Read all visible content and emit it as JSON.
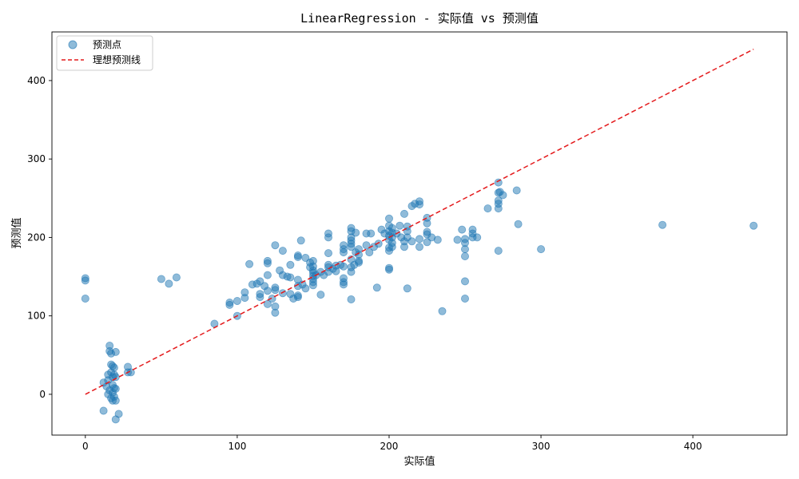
{
  "chart_data": {
    "type": "scatter",
    "title": "LinearRegression - 实际值 vs 预测值",
    "xlabel": "实际值",
    "ylabel": "预测值",
    "xlim": [
      -22,
      462
    ],
    "ylim": [
      -52,
      462
    ],
    "xticks": [
      0,
      100,
      200,
      300,
      400
    ],
    "yticks": [
      0,
      100,
      200,
      300,
      400
    ],
    "grid": false,
    "legend_position": "top-left",
    "colors": {
      "points": "#1f77b4",
      "ideal_line": "#e41a1c",
      "axes": "#000000"
    },
    "series": [
      {
        "name": "预测点",
        "kind": "scatter",
        "points": [
          [
            0,
            148
          ],
          [
            0,
            145
          ],
          [
            0,
            122
          ],
          [
            50,
            147
          ],
          [
            55,
            141
          ],
          [
            60,
            149
          ],
          [
            12,
            15
          ],
          [
            12,
            -21
          ],
          [
            14,
            10
          ],
          [
            15,
            25
          ],
          [
            15,
            0
          ],
          [
            15,
            18
          ],
          [
            16,
            62
          ],
          [
            16,
            55
          ],
          [
            16,
            5
          ],
          [
            17,
            52
          ],
          [
            17,
            38
          ],
          [
            17,
            -5
          ],
          [
            17,
            28
          ],
          [
            18,
            36
          ],
          [
            18,
            22
          ],
          [
            18,
            12
          ],
          [
            18,
            2
          ],
          [
            18,
            -8
          ],
          [
            19,
            34
          ],
          [
            19,
            25
          ],
          [
            19,
            8
          ],
          [
            19,
            -3
          ],
          [
            20,
            54
          ],
          [
            20,
            22
          ],
          [
            20,
            7
          ],
          [
            20,
            -8
          ],
          [
            20,
            -32
          ],
          [
            22,
            -25
          ],
          [
            28,
            28
          ],
          [
            28,
            35
          ],
          [
            30,
            28
          ],
          [
            85,
            90
          ],
          [
            95,
            114
          ],
          [
            95,
            117
          ],
          [
            100,
            100
          ],
          [
            100,
            119
          ],
          [
            105,
            130
          ],
          [
            105,
            123
          ],
          [
            108,
            166
          ],
          [
            110,
            140
          ],
          [
            113,
            141
          ],
          [
            115,
            144
          ],
          [
            115,
            128
          ],
          [
            115,
            124
          ],
          [
            118,
            138
          ],
          [
            120,
            170
          ],
          [
            120,
            167
          ],
          [
            120,
            152
          ],
          [
            120,
            132
          ],
          [
            120,
            115
          ],
          [
            123,
            122
          ],
          [
            125,
            190
          ],
          [
            125,
            136
          ],
          [
            125,
            133
          ],
          [
            125,
            112
          ],
          [
            125,
            104
          ],
          [
            128,
            158
          ],
          [
            130,
            183
          ],
          [
            130,
            152
          ],
          [
            130,
            129
          ],
          [
            133,
            150
          ],
          [
            135,
            165
          ],
          [
            135,
            149
          ],
          [
            135,
            128
          ],
          [
            137,
            122
          ],
          [
            140,
            177
          ],
          [
            140,
            175
          ],
          [
            140,
            146
          ],
          [
            140,
            138
          ],
          [
            140,
            126
          ],
          [
            140,
            124
          ],
          [
            142,
            196
          ],
          [
            143,
            140
          ],
          [
            145,
            174
          ],
          [
            145,
            135
          ],
          [
            148,
            168
          ],
          [
            148,
            162
          ],
          [
            150,
            170
          ],
          [
            150,
            163
          ],
          [
            150,
            158
          ],
          [
            150,
            155
          ],
          [
            150,
            151
          ],
          [
            150,
            147
          ],
          [
            150,
            143
          ],
          [
            150,
            139
          ],
          [
            152,
            152
          ],
          [
            155,
            156
          ],
          [
            155,
            127
          ],
          [
            157,
            152
          ],
          [
            160,
            205
          ],
          [
            160,
            200
          ],
          [
            160,
            180
          ],
          [
            160,
            165
          ],
          [
            160,
            162
          ],
          [
            160,
            156
          ],
          [
            163,
            160
          ],
          [
            165,
            164
          ],
          [
            165,
            157
          ],
          [
            168,
            165
          ],
          [
            170,
            190
          ],
          [
            170,
            185
          ],
          [
            170,
            181
          ],
          [
            170,
            163
          ],
          [
            170,
            148
          ],
          [
            170,
            143
          ],
          [
            170,
            140
          ],
          [
            175,
            212
          ],
          [
            175,
            208
          ],
          [
            175,
            200
          ],
          [
            175,
            196
          ],
          [
            175,
            192
          ],
          [
            175,
            188
          ],
          [
            175,
            172
          ],
          [
            175,
            162
          ],
          [
            175,
            156
          ],
          [
            175,
            121
          ],
          [
            177,
            165
          ],
          [
            178,
            206
          ],
          [
            178,
            181
          ],
          [
            180,
            185
          ],
          [
            180,
            178
          ],
          [
            180,
            170
          ],
          [
            180,
            168
          ],
          [
            185,
            205
          ],
          [
            185,
            190
          ],
          [
            187,
            181
          ],
          [
            188,
            205
          ],
          [
            190,
            188
          ],
          [
            192,
            136
          ],
          [
            193,
            192
          ],
          [
            195,
            210
          ],
          [
            197,
            205
          ],
          [
            200,
            224
          ],
          [
            200,
            215
          ],
          [
            200,
            208
          ],
          [
            200,
            202
          ],
          [
            200,
            197
          ],
          [
            200,
            187
          ],
          [
            200,
            183
          ],
          [
            200,
            161
          ],
          [
            200,
            159
          ],
          [
            202,
            212
          ],
          [
            202,
            206
          ],
          [
            202,
            200
          ],
          [
            202,
            193
          ],
          [
            202,
            188
          ],
          [
            205,
            205
          ],
          [
            207,
            215
          ],
          [
            208,
            200
          ],
          [
            210,
            230
          ],
          [
            210,
            195
          ],
          [
            210,
            188
          ],
          [
            212,
            214
          ],
          [
            212,
            208
          ],
          [
            212,
            200
          ],
          [
            212,
            135
          ],
          [
            215,
            240
          ],
          [
            215,
            195
          ],
          [
            217,
            243
          ],
          [
            220,
            246
          ],
          [
            220,
            242
          ],
          [
            220,
            198
          ],
          [
            220,
            188
          ],
          [
            225,
            225
          ],
          [
            225,
            218
          ],
          [
            225,
            207
          ],
          [
            225,
            204
          ],
          [
            225,
            194
          ],
          [
            228,
            200
          ],
          [
            232,
            197
          ],
          [
            235,
            106
          ],
          [
            245,
            197
          ],
          [
            248,
            210
          ],
          [
            250,
            198
          ],
          [
            250,
            193
          ],
          [
            250,
            185
          ],
          [
            250,
            176
          ],
          [
            250,
            144
          ],
          [
            250,
            122
          ],
          [
            255,
            210
          ],
          [
            255,
            205
          ],
          [
            255,
            200
          ],
          [
            258,
            200
          ],
          [
            265,
            237
          ],
          [
            272,
            270
          ],
          [
            272,
            257
          ],
          [
            272,
            247
          ],
          [
            272,
            243
          ],
          [
            272,
            237
          ],
          [
            272,
            183
          ],
          [
            273,
            258
          ],
          [
            275,
            254
          ],
          [
            284,
            260
          ],
          [
            285,
            217
          ],
          [
            300,
            185
          ],
          [
            380,
            216
          ],
          [
            440,
            215
          ]
        ]
      },
      {
        "name": "理想预测线",
        "kind": "line",
        "style": "dashed",
        "from": [
          0,
          0
        ],
        "to": [
          440,
          440
        ]
      }
    ]
  }
}
